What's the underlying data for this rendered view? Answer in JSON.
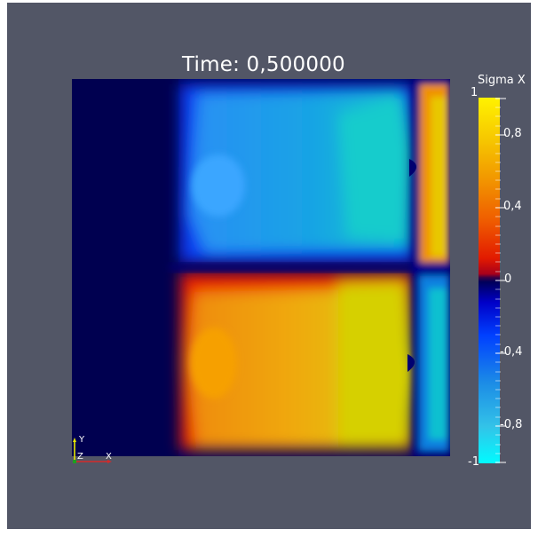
{
  "render_view": {
    "time_label": "Time: 0,500000",
    "background_color": "#525666"
  },
  "colorbar": {
    "title": "Sigma X",
    "range": [
      -1,
      1
    ],
    "labels": {
      "max": "1",
      "p08": "0,8",
      "p04": "0,4",
      "zero": "0",
      "m04": "-0,4",
      "m08": "-0,8",
      "min": "-1"
    },
    "colormap": "blue-red-yellow (jet-like, diverging at 0)"
  },
  "axes_triad": {
    "x_label": "X",
    "y_label": "Y",
    "z_label": "Z",
    "x_color": "#d42a2a",
    "y_color": "#e8e800",
    "z_color": "#1fa01f"
  }
}
